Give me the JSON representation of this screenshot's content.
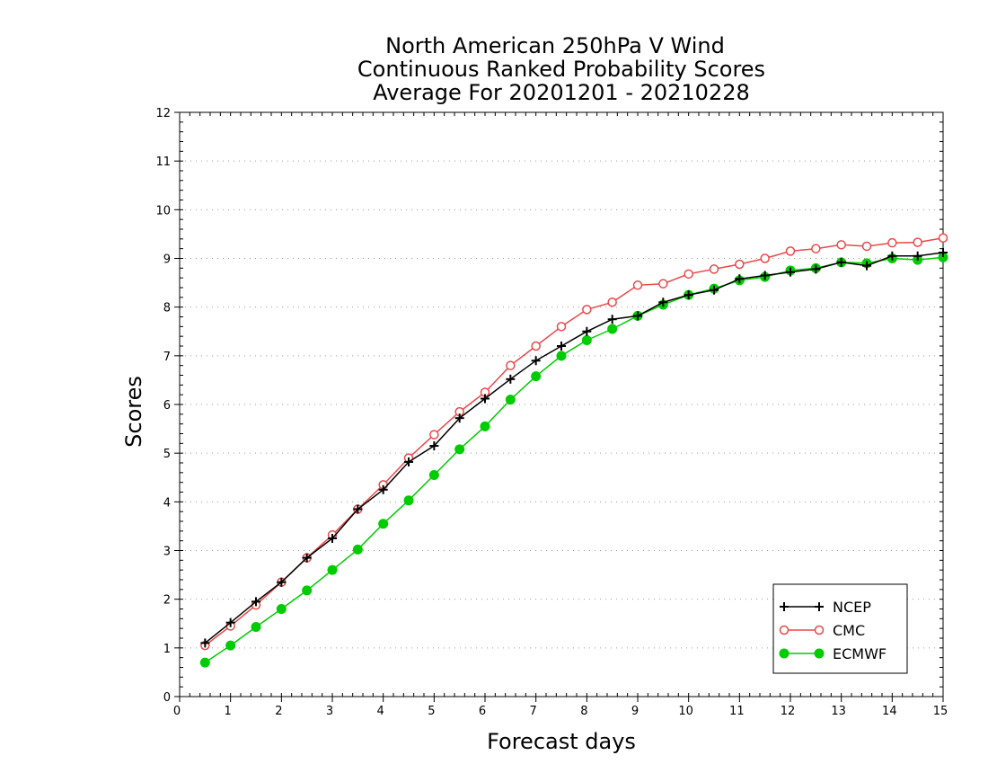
{
  "chart_data": {
    "type": "line",
    "title": [
      "North American 250hPa V Wind",
      "Continuous Ranked Probability Scores",
      "Average For 20201201 - 20210228"
    ],
    "xlabel": "Forecast days",
    "ylabel": "Scores",
    "xlim": [
      0,
      15
    ],
    "ylim": [
      0,
      12
    ],
    "xticks": [
      "0",
      "1",
      "2",
      "3",
      "4",
      "5",
      "6",
      "7",
      "8",
      "9",
      "10",
      "11",
      "12",
      "13",
      "14",
      "15"
    ],
    "yticks": [
      "0",
      "1",
      "2",
      "3",
      "4",
      "5",
      "6",
      "7",
      "8",
      "9",
      "10",
      "11",
      "12"
    ],
    "grid": "horizontal dotted",
    "legend_position": "bottom-right",
    "x": [
      0.5,
      1,
      1.5,
      2,
      2.5,
      3,
      3.5,
      4,
      4.5,
      5,
      5.5,
      6,
      6.5,
      7,
      7.5,
      8,
      8.5,
      9,
      9.5,
      10,
      10.5,
      11,
      11.5,
      12,
      12.5,
      13,
      13.5,
      14,
      14.5,
      15
    ],
    "series": [
      {
        "name": "NCEP",
        "color": "#000000",
        "marker": "plus",
        "values": [
          1.1,
          1.52,
          1.95,
          2.35,
          2.85,
          3.25,
          3.85,
          4.25,
          4.82,
          5.15,
          5.72,
          6.12,
          6.52,
          6.9,
          7.2,
          7.5,
          7.75,
          7.82,
          8.1,
          8.25,
          8.35,
          8.58,
          8.65,
          8.72,
          8.78,
          8.92,
          8.85,
          9.05,
          9.05,
          9.12
        ]
      },
      {
        "name": "CMC",
        "color": "#e8484a",
        "marker": "open-circle",
        "values": [
          1.05,
          1.45,
          1.88,
          2.35,
          2.85,
          3.32,
          3.85,
          4.35,
          4.9,
          5.38,
          5.85,
          6.25,
          6.8,
          7.2,
          7.6,
          7.95,
          8.1,
          8.45,
          8.48,
          8.68,
          8.78,
          8.88,
          9.0,
          9.15,
          9.2,
          9.28,
          9.25,
          9.32,
          9.33,
          9.42
        ]
      },
      {
        "name": "ECMWF",
        "color": "#00cc00",
        "marker": "filled-circle",
        "values": [
          0.7,
          1.05,
          1.43,
          1.8,
          2.18,
          2.6,
          3.02,
          3.55,
          4.03,
          4.55,
          5.08,
          5.55,
          6.1,
          6.58,
          7.0,
          7.32,
          7.55,
          7.82,
          8.05,
          8.25,
          8.38,
          8.55,
          8.62,
          8.75,
          8.8,
          8.92,
          8.9,
          9.0,
          8.97,
          9.02
        ]
      }
    ]
  }
}
